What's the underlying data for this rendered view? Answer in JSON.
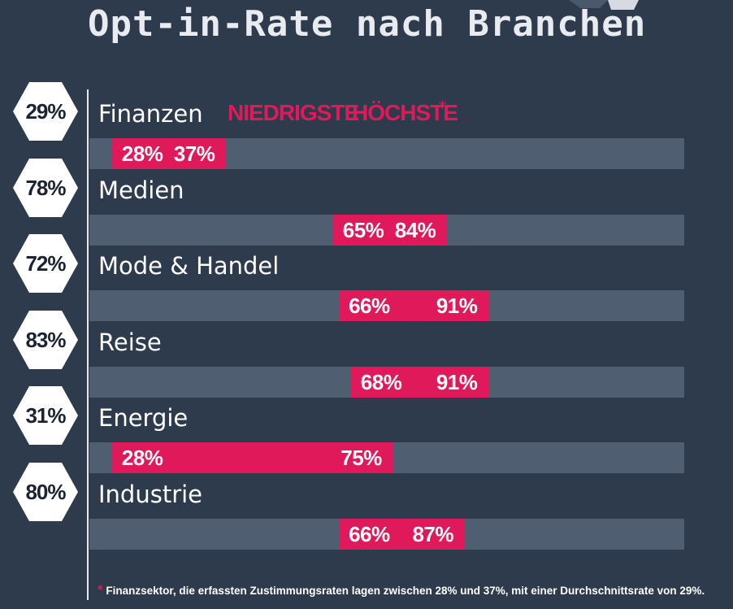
{
  "title": "Opt-in-Rate nach Branchen",
  "legend": {
    "low": "NIEDRIGSTE",
    "high": "HÖCHSTE",
    "star": "*"
  },
  "footnote": {
    "star": "*",
    "text": "Finanzsektor, die erfassten Zustimmungsraten lagen zwischen 28% und 37%, mit einer Durchschnittsrate von 29%."
  },
  "colors": {
    "background": "#2e3b4d",
    "accent": "#e0195a",
    "track": "#4f5f71",
    "hexagon": "#ffffff"
  },
  "chart_data": {
    "type": "bar",
    "title": "Opt-in-Rate nach Branchen",
    "xlim": [
      0,
      100
    ],
    "categories": [
      "Finanzen",
      "Medien",
      "Mode & Handel",
      "Reise",
      "Energie",
      "Industrie"
    ],
    "average": [
      29,
      78,
      72,
      83,
      31,
      80
    ],
    "average_labels": [
      "29%",
      "78%",
      "72%",
      "83%",
      "31%",
      "80%"
    ],
    "low": [
      28,
      65,
      66,
      68,
      28,
      66
    ],
    "low_labels": [
      "28%",
      "65%",
      "66%",
      "68%",
      "28%",
      "66%"
    ],
    "high": [
      37,
      84,
      91,
      91,
      75,
      87
    ],
    "high_labels": [
      "37%",
      "84%",
      "91%",
      "91%",
      "75%",
      "87%"
    ]
  }
}
